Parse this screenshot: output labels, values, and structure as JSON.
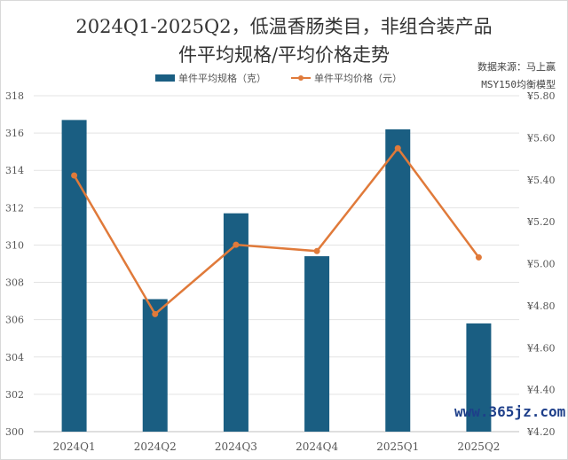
{
  "chart_data": {
    "type": "bar+line",
    "title_line1": "2024Q1-2025Q2，低温香肠类目，非组合装产品",
    "title_line2": "件平均规格/平均价格走势",
    "source_line1": "数据来源：马上赢",
    "source_line2": "MSY150均衡模型",
    "categories": [
      "2024Q1",
      "2024Q2",
      "2024Q3",
      "2024Q4",
      "2025Q1",
      "2025Q2"
    ],
    "series": [
      {
        "name": "单件平均规格（克）",
        "type": "bar",
        "axis": "left",
        "color": "#1a5e82",
        "values": [
          316.7,
          307.1,
          311.7,
          309.4,
          316.2,
          305.8
        ]
      },
      {
        "name": "单件平均价格（元）",
        "type": "line",
        "axis": "right",
        "color": "#e07a3a",
        "values": [
          5.42,
          4.76,
          5.09,
          5.06,
          5.55,
          5.03
        ]
      }
    ],
    "left_axis": {
      "ylim": [
        300,
        318
      ],
      "ticks": [
        "300",
        "302",
        "304",
        "306",
        "308",
        "310",
        "312",
        "314",
        "316",
        "318"
      ]
    },
    "right_axis": {
      "ylim": [
        4.2,
        5.8
      ],
      "ticks": [
        "¥4.20",
        "¥4.40",
        "¥4.60",
        "¥4.80",
        "¥5.00",
        "¥5.20",
        "¥5.40",
        "¥5.60",
        "¥5.80"
      ]
    },
    "grid": true,
    "legend_position": "top"
  },
  "watermark": "www.365jz.com"
}
